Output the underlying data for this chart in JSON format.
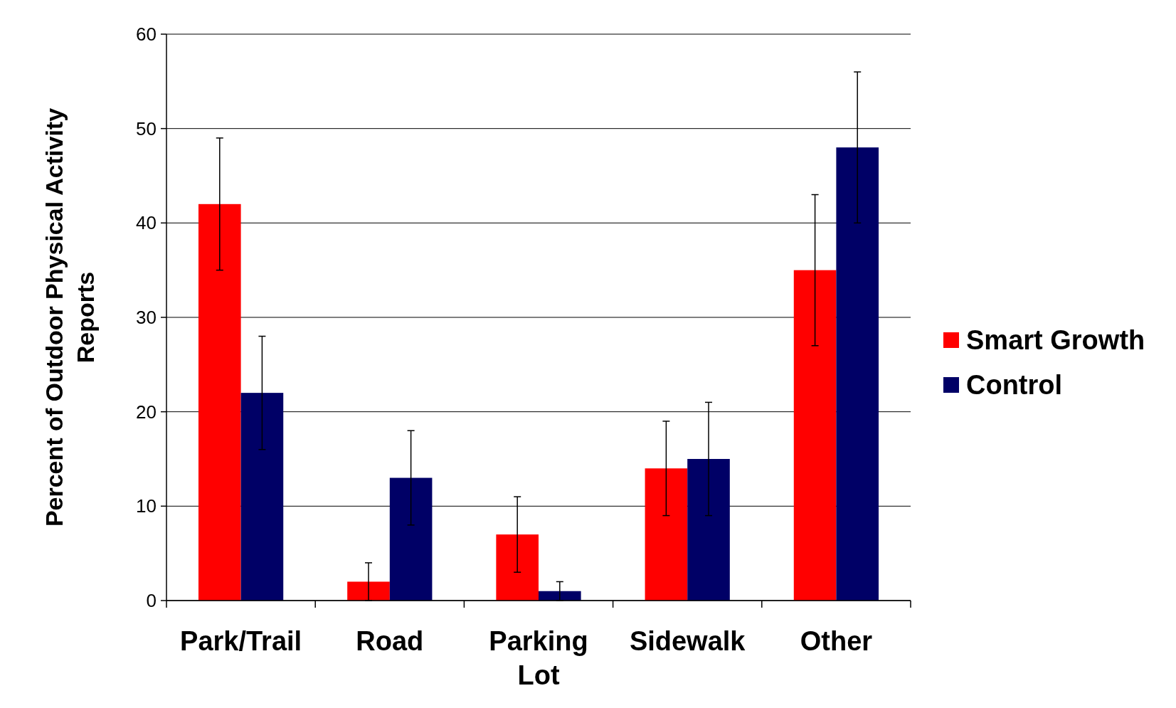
{
  "chart_data": {
    "type": "bar",
    "ylabel": "Percent of Outdoor Physical Activity Reports",
    "categories": [
      "Park/Trail",
      "Road",
      "Parking Lot",
      "Sidewalk",
      "Other"
    ],
    "series": [
      {
        "name": "Smart Growth",
        "color": "#ff0000",
        "values": [
          42,
          2,
          7,
          14,
          35
        ],
        "errors": [
          7,
          2,
          4,
          5,
          8
        ]
      },
      {
        "name": "Control",
        "color": "#000066",
        "values": [
          22,
          13,
          1,
          15,
          48
        ],
        "errors": [
          6,
          5,
          1,
          6,
          8
        ]
      }
    ],
    "ylim": [
      0,
      60
    ],
    "yticks": [
      0,
      10,
      20,
      30,
      40,
      50,
      60
    ],
    "grid": "y",
    "legend": "right"
  }
}
